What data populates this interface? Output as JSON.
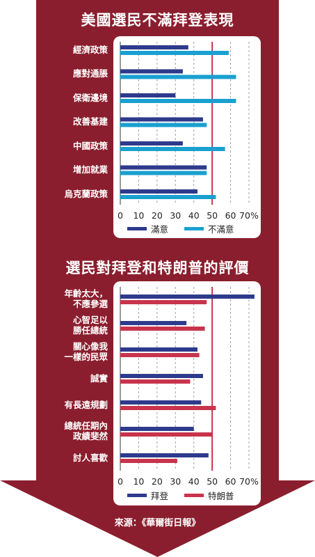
{
  "colors": {
    "background": "#8b1e2e",
    "panel": "#ffffff",
    "satisfied": "#2e3a8c",
    "dissatisfied": "#1aa0d0",
    "biden": "#2e3a8c",
    "trump": "#c8344c",
    "refline": "#c8344c",
    "grid": "#9aa0b0"
  },
  "footer": {
    "source": "來源：《華爾街日報》"
  },
  "chart_data": [
    {
      "type": "bar",
      "title": "美國選民不滿拜登表現",
      "categories": [
        "經濟政策",
        "應對通脹",
        "保衛邊境",
        "改善基建",
        "中國政策",
        "增加就業",
        "烏克蘭政策"
      ],
      "series": [
        {
          "name": "滿意",
          "values": [
            37,
            34,
            30,
            45,
            34,
            47,
            42
          ]
        },
        {
          "name": "不滿意",
          "values": [
            59,
            63,
            63,
            47,
            57,
            47,
            52
          ]
        }
      ],
      "xticks": [
        "0",
        "10",
        "20",
        "30",
        "40",
        "50",
        "60",
        "70%"
      ],
      "xlim": [
        0,
        70
      ],
      "reference_line": 50,
      "grid": true,
      "legend": "bottom"
    },
    {
      "type": "bar",
      "title": "選民對拜登和特朗普的評價",
      "categories": [
        "年齡太大，\n不應參選",
        "心智足以\n勝任總統",
        "關心像我\n一樣的民眾",
        "誠實",
        "有長遠規劃",
        "總統任期內\n政績斐然",
        "討人喜歡"
      ],
      "series": [
        {
          "name": "拜登",
          "values": [
            73,
            36,
            42,
            45,
            44,
            40,
            48
          ]
        },
        {
          "name": "特朗普",
          "values": [
            47,
            46,
            43,
            38,
            52,
            50,
            31
          ]
        }
      ],
      "xticks": [
        "0",
        "10",
        "20",
        "30",
        "40",
        "50",
        "60",
        "70%"
      ],
      "xlim": [
        0,
        70
      ],
      "reference_line": 50,
      "grid": true,
      "legend": "bottom"
    }
  ]
}
